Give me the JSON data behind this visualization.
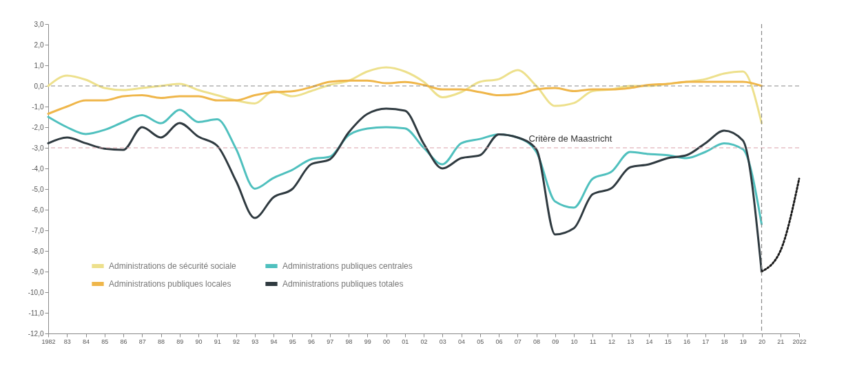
{
  "chart_data": {
    "type": "line",
    "x": [
      1982,
      1983,
      1984,
      1985,
      1986,
      1987,
      1988,
      1989,
      1990,
      1991,
      1992,
      1993,
      1994,
      1995,
      1996,
      1997,
      1998,
      1999,
      2000,
      2001,
      2002,
      2003,
      2004,
      2005,
      2006,
      2007,
      2008,
      2009,
      2010,
      2011,
      2012,
      2013,
      2014,
      2015,
      2016,
      2017,
      2018,
      2019,
      2020
    ],
    "series": [
      {
        "name": "Administrations de sécurité sociale",
        "color": "#ede08c",
        "values": [
          0.0,
          0.5,
          0.3,
          -0.1,
          -0.2,
          -0.1,
          0.0,
          0.1,
          -0.2,
          -0.45,
          -0.7,
          -0.85,
          -0.25,
          -0.5,
          -0.25,
          0.05,
          0.25,
          0.7,
          0.9,
          0.7,
          0.2,
          -0.55,
          -0.3,
          0.2,
          0.33,
          0.77,
          0.0,
          -0.97,
          -0.83,
          -0.25,
          -0.17,
          0.0,
          0.0,
          0.1,
          0.2,
          0.33,
          0.6,
          0.7,
          -1.8
        ]
      },
      {
        "name": "Administrations publiques locales",
        "color": "#efb64a",
        "values": [
          -1.35,
          -1.0,
          -0.7,
          -0.7,
          -0.5,
          -0.45,
          -0.58,
          -0.5,
          -0.5,
          -0.7,
          -0.7,
          -0.45,
          -0.3,
          -0.26,
          -0.06,
          0.2,
          0.26,
          0.26,
          0.13,
          0.19,
          0.05,
          -0.17,
          -0.17,
          -0.3,
          -0.45,
          -0.4,
          -0.17,
          -0.1,
          -0.25,
          -0.17,
          -0.17,
          -0.1,
          0.05,
          0.1,
          0.2,
          0.2,
          0.2,
          0.2,
          0.0
        ]
      },
      {
        "name": "Administrations publiques centrales",
        "color": "#4fc0be",
        "values": [
          -1.5,
          -2.0,
          -2.33,
          -2.13,
          -1.75,
          -1.42,
          -1.81,
          -1.16,
          -1.75,
          -1.62,
          -3.04,
          -4.98,
          -4.46,
          -4.07,
          -3.56,
          -3.43,
          -2.39,
          -2.07,
          -2.0,
          -2.06,
          -3.0,
          -3.8,
          -2.78,
          -2.57,
          -2.35,
          -2.5,
          -3.2,
          -5.6,
          -5.9,
          -4.5,
          -4.16,
          -3.2,
          -3.3,
          -3.36,
          -3.5,
          -3.2,
          -2.78,
          -3.07,
          -6.7
        ]
      },
      {
        "name": "Administrations publiques totales",
        "color": "#2f3a40",
        "values": [
          -2.78,
          -2.5,
          -2.78,
          -3.04,
          -3.1,
          -2.0,
          -2.5,
          -1.8,
          -2.46,
          -2.9,
          -4.6,
          -6.4,
          -5.4,
          -5.0,
          -3.8,
          -3.56,
          -2.26,
          -1.36,
          -1.1,
          -1.2,
          -2.8,
          -4.0,
          -3.5,
          -3.36,
          -2.35,
          -2.5,
          -3.07,
          -7.2,
          -6.9,
          -5.25,
          -4.96,
          -3.94,
          -3.8,
          -3.5,
          -3.36,
          -2.78,
          -2.17,
          -2.64,
          -9.0
        ]
      },
      {
        "color": "#1a1a1a",
        "line_style": "dotted",
        "x": [
          2020,
          2021,
          2022
        ],
        "values": [
          -9.0,
          -8.0,
          -4.5
        ]
      }
    ],
    "xlim": [
      1982,
      2022
    ],
    "xticks": [
      1982,
      {
        "value": 1983,
        "label": "83"
      },
      {
        "value": 1984,
        "label": "84"
      },
      {
        "value": 1985,
        "label": "85"
      },
      {
        "value": 1986,
        "label": "86"
      },
      {
        "value": 1987,
        "label": "87"
      },
      {
        "value": 1988,
        "label": "88"
      },
      {
        "value": 1989,
        "label": "89"
      },
      {
        "value": 1990,
        "label": "90"
      },
      {
        "value": 1991,
        "label": "91"
      },
      {
        "value": 1992,
        "label": "92"
      },
      {
        "value": 1993,
        "label": "93"
      },
      {
        "value": 1994,
        "label": "94"
      },
      {
        "value": 1995,
        "label": "95"
      },
      {
        "value": 1996,
        "label": "96"
      },
      {
        "value": 1997,
        "label": "97"
      },
      {
        "value": 1998,
        "label": "98"
      },
      {
        "value": 1999,
        "label": "99"
      },
      {
        "value": 2000,
        "label": "00"
      },
      {
        "value": 2001,
        "label": "01"
      },
      {
        "value": 2002,
        "label": "02"
      },
      {
        "value": 2003,
        "label": "03"
      },
      {
        "value": 2004,
        "label": "04"
      },
      {
        "value": 2005,
        "label": "05"
      },
      {
        "value": 2006,
        "label": "06"
      },
      {
        "value": 2007,
        "label": "07"
      },
      {
        "value": 2008,
        "label": "08"
      },
      {
        "value": 2009,
        "label": "09"
      },
      {
        "value": 2010,
        "label": "10"
      },
      {
        "value": 2011,
        "label": "11"
      },
      {
        "value": 2012,
        "label": "12"
      },
      {
        "value": 2013,
        "label": "13"
      },
      {
        "value": 2014,
        "label": "14"
      },
      {
        "value": 2015,
        "label": "15"
      },
      {
        "value": 2016,
        "label": "16"
      },
      {
        "value": 2017,
        "label": "17"
      },
      {
        "value": 2018,
        "label": "18"
      },
      {
        "value": 2019,
        "label": "19"
      },
      {
        "value": 2020,
        "label": "20"
      },
      {
        "value": 2021,
        "label": "21"
      },
      2022
    ],
    "ylim": [
      -12,
      3
    ],
    "yticks": [
      {
        "value": 3,
        "label": "3,0"
      },
      {
        "value": 2,
        "label": "2,0"
      },
      {
        "value": 1,
        "label": "1,0"
      },
      {
        "value": 0,
        "label": "0,0"
      },
      {
        "value": -1,
        "label": "-1,0"
      },
      {
        "value": -2,
        "label": "-2,0"
      },
      {
        "value": -3,
        "label": "-3,0"
      },
      {
        "value": -4,
        "label": "-4,0"
      },
      {
        "value": -5,
        "label": "-5,0"
      },
      {
        "value": -6,
        "label": "-6,0"
      },
      {
        "value": -7,
        "label": "-7,0"
      },
      {
        "value": -8,
        "label": "-8,0"
      },
      {
        "value": -9,
        "label": "-9,0"
      },
      {
        "value": -10,
        "label": "-10,0"
      },
      {
        "value": -11,
        "label": "-11,0"
      },
      {
        "value": -12,
        "label": "-12,0"
      }
    ],
    "ref_lines": [
      {
        "axis": "y",
        "value": 0,
        "color": "#888888",
        "line_style": "dashed"
      },
      {
        "axis": "y",
        "value": -3,
        "label": "Critère de Maastricht",
        "color": "#d9a0a8",
        "line_style": "dashed"
      },
      {
        "axis": "x",
        "value": 2020,
        "color": "#888888",
        "line_style": "dashed"
      }
    ],
    "grid": false,
    "legend": "bottom left",
    "line_style": "solid"
  }
}
